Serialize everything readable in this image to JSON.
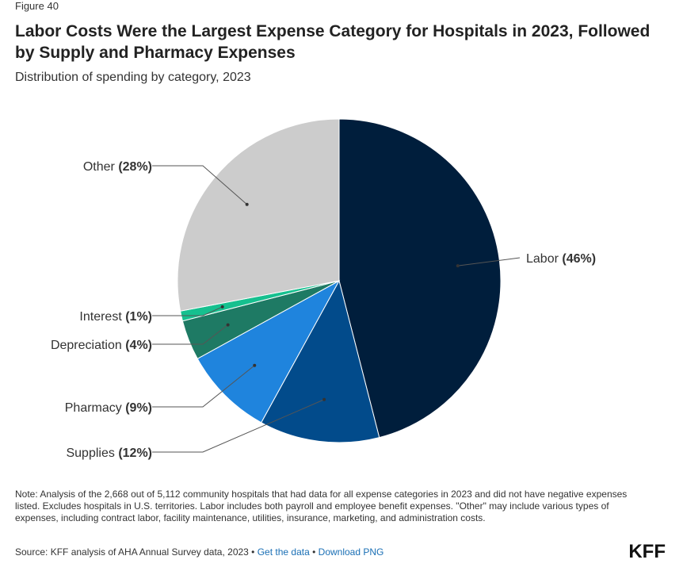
{
  "figure_label": "Figure 40",
  "title": "Labor Costs Were the Largest Expense Category for Hospitals in 2023, Followed by Supply and Pharmacy Expenses",
  "subtitle": "Distribution of spending by category, 2023",
  "chart_data": {
    "type": "pie",
    "slices": [
      {
        "label": "Labor",
        "value": 46,
        "display": "(46%)",
        "color": "#001e3c"
      },
      {
        "label": "Supplies",
        "value": 12,
        "display": "(12%)",
        "color": "#024b8b"
      },
      {
        "label": "Pharmacy",
        "value": 9,
        "display": "(9%)",
        "color": "#1f84dd"
      },
      {
        "label": "Depreciation",
        "value": 4,
        "display": "(4%)",
        "color": "#1e7a64"
      },
      {
        "label": "Interest",
        "value": 1,
        "display": "(1%)",
        "color": "#16c08f"
      },
      {
        "label": "Other",
        "value": 28,
        "display": "(28%)",
        "color": "#cccccc"
      }
    ]
  },
  "note": "Note: Analysis of the 2,668 out of 5,112 community hospitals that had data for all expense categories in 2023 and did not have negative expenses listed. Excludes hospitals in U.S. territories. Labor includes both payroll and employee benefit expenses. \"Other\" may include various types of expenses, including contract labor, facility maintenance, utilities, insurance, marketing, and administration costs.",
  "source": {
    "text": "Source: KFF analysis of AHA Annual Survey data, 2023 •",
    "link1": "Get the data",
    "separator": "•",
    "link2": "Download PNG"
  },
  "logo": "KFF"
}
